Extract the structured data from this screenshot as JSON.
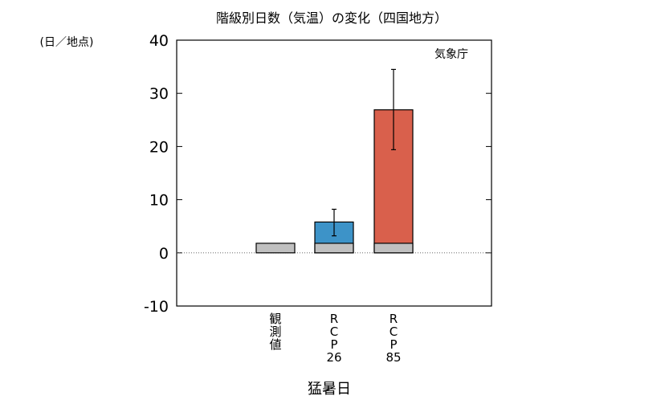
{
  "chart_data": {
    "type": "bar",
    "title": "階級別日数（気温）の変化（四国地方）",
    "ylabel": "(日／地点)",
    "xlabel": "猛暑日",
    "source_label": "気象庁",
    "ylim": [
      -10,
      40
    ],
    "yticks": [
      -10,
      0,
      10,
      20,
      30,
      40
    ],
    "categories": [
      "観測値",
      "RCP2.6",
      "RCP8.5"
    ],
    "category_label_lines": [
      [
        "観",
        "測",
        "値"
      ],
      [
        "R",
        "C",
        "P",
        "26"
      ],
      [
        "R",
        "C",
        "P",
        "85"
      ]
    ],
    "baseline_values": [
      1.8,
      1.8,
      1.8
    ],
    "values": [
      1.8,
      5.8,
      26.9
    ],
    "error_low": [
      null,
      3.2,
      19.4
    ],
    "error_high": [
      null,
      8.2,
      34.5
    ],
    "zero_line": "dotted",
    "colors": {
      "observed": "#c0c0c0",
      "rcp26": "#3d93c8",
      "rcp85": "#d9604c",
      "baseline": "#c0c0c0"
    }
  }
}
